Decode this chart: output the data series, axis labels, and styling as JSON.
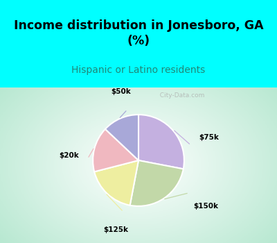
{
  "title": "Income distribution in Jonesboro, GA\n(%)",
  "subtitle": "Hispanic or Latino residents",
  "labels": [
    "$75k",
    "$150k",
    "$125k",
    "$20k",
    "$50k"
  ],
  "sizes": [
    28,
    25,
    18,
    16,
    13
  ],
  "colors": [
    "#c4b0e0",
    "#c2d8a8",
    "#eeeea0",
    "#f0b8c0",
    "#a8a8d8"
  ],
  "bg_top": "#00ffff",
  "bg_chart_edge": "#b8e8d0",
  "title_color": "#000000",
  "subtitle_color": "#208878",
  "startangle": 90,
  "watermark": "  City-Data.com"
}
